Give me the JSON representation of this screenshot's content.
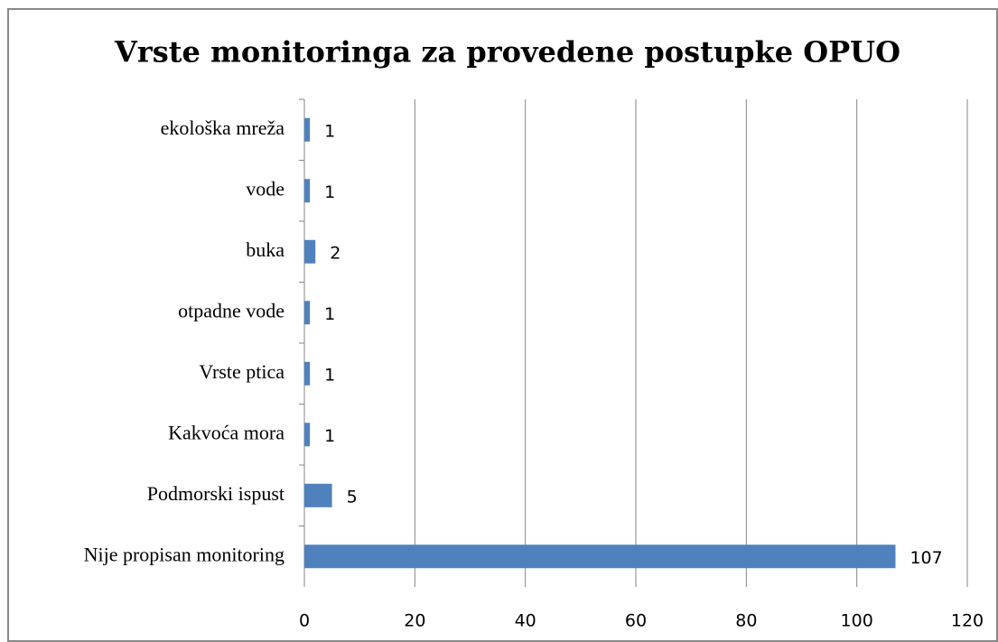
{
  "chart_data": {
    "type": "barh",
    "title": "Vrste monitoringa za provedene postupke OPUO",
    "categories": [
      "ekološka mreža",
      "vode",
      "buka",
      "otpadne vode",
      "Vrste ptica",
      "Kakvoća mora",
      "Podmorski ispust",
      "Nije propisan monitoring"
    ],
    "values": [
      1,
      1,
      2,
      1,
      1,
      1,
      5,
      107
    ],
    "color": "#4f81bd",
    "xlim": [
      0,
      120
    ],
    "xticks": [
      0,
      20,
      40,
      60,
      80,
      100,
      120
    ],
    "grid": true
  }
}
